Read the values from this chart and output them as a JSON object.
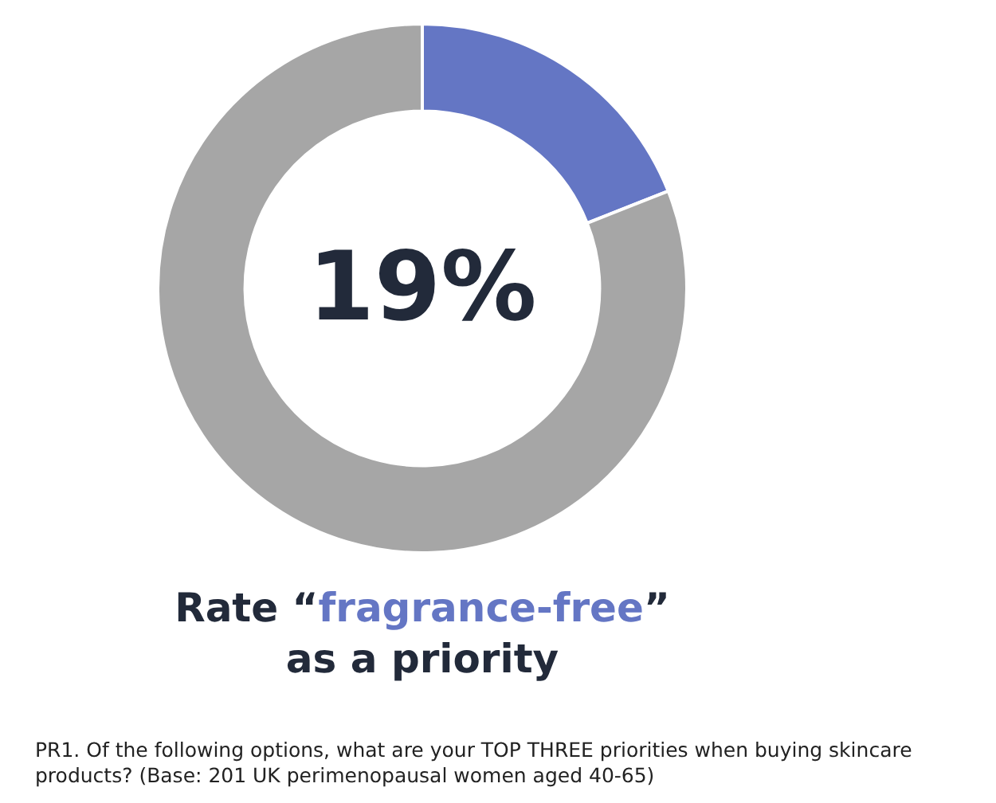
{
  "chart_data": {
    "type": "donut",
    "title": "Rate “fragrance-free” as a priority",
    "categories": [
      null,
      null
    ],
    "values": [
      19,
      81
    ],
    "colors": [
      "#6476c4",
      "#a6a6a6"
    ],
    "value_labels": [
      "19%",
      null
    ],
    "legend": false,
    "annotations": [
      "PR1. Of the following options, what are your TOP THREE priorities when buying skincare products? (Base: 201 UK perimenopausal women aged 40-65)"
    ]
  }
}
